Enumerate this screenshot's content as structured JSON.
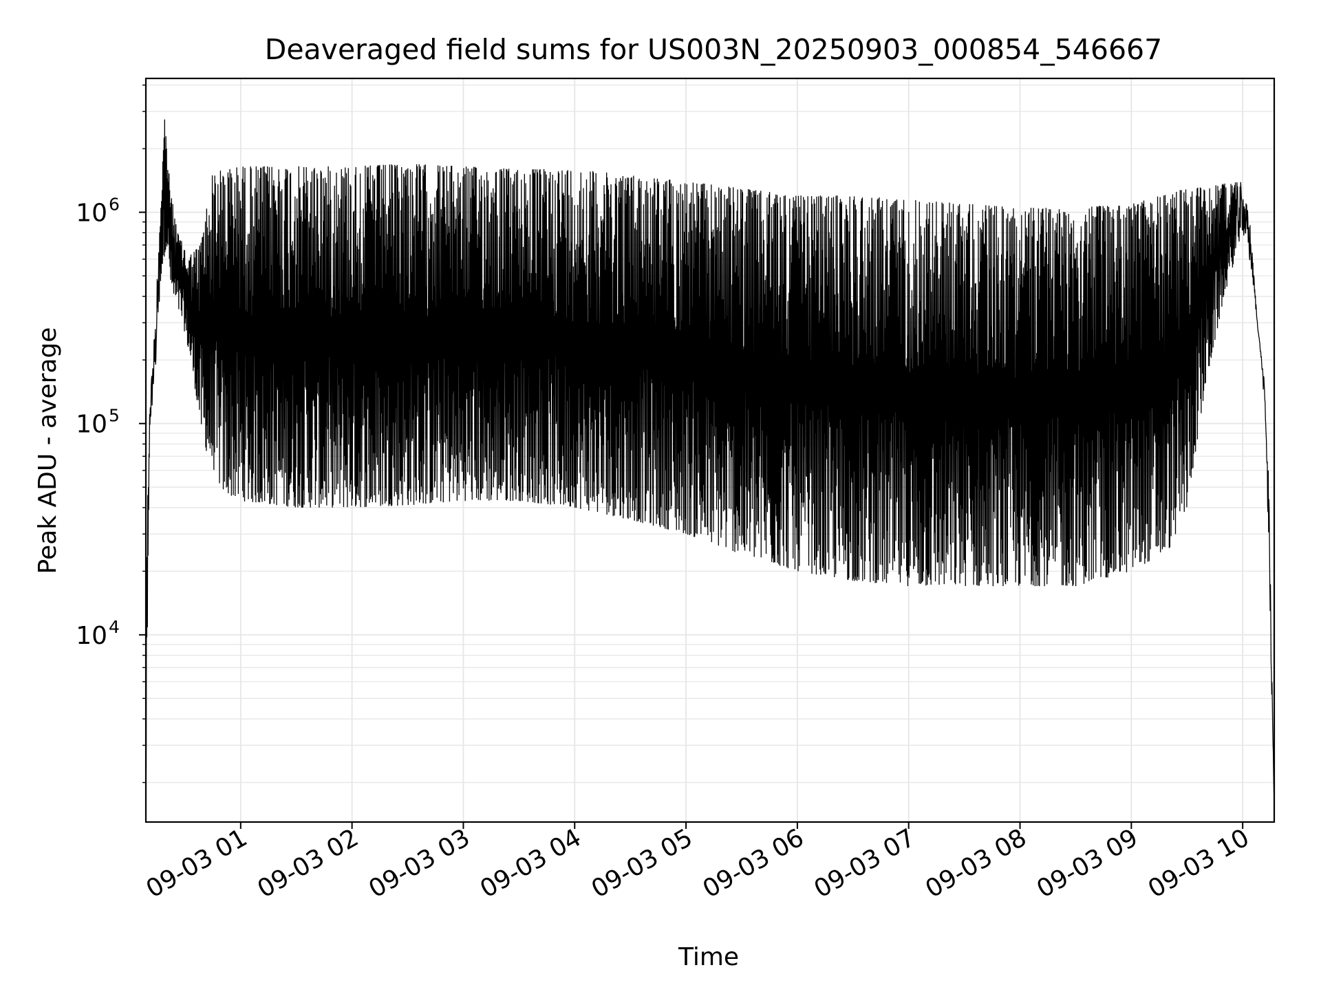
{
  "chart_data": {
    "type": "line",
    "title": "Deaveraged field sums for US003N_20250903_000854_546667",
    "xlabel": "Time",
    "ylabel": "Peak ADU - average",
    "x_axis": {
      "kind": "time",
      "start": "2025-09-03 00:08:54",
      "end": "2025-09-03 10:17:00",
      "tick_labels": [
        "09-03 01",
        "09-03 02",
        "09-03 03",
        "09-03 04",
        "09-03 05",
        "09-03 06",
        "09-03 07",
        "09-03 08",
        "09-03 09",
        "09-03 10"
      ],
      "tick_values": [
        "2025-09-03 01:00",
        "2025-09-03 02:00",
        "2025-09-03 03:00",
        "2025-09-03 04:00",
        "2025-09-03 05:00",
        "2025-09-03 06:00",
        "2025-09-03 07:00",
        "2025-09-03 08:00",
        "2025-09-03 09:00",
        "2025-09-03 10:00"
      ]
    },
    "y_axis": {
      "scale": "log",
      "range": [
        1300,
        4300000
      ],
      "ticks": [
        {
          "value": 10000,
          "base": "10",
          "exp": "4"
        },
        {
          "value": 100000,
          "base": "10",
          "exp": "5"
        },
        {
          "value": 1000000,
          "base": "10",
          "exp": "6"
        }
      ]
    },
    "grid": true,
    "legend": "none",
    "line_color": "#000000",
    "grid_color": "#e6e6e6",
    "series": [
      {
        "name": "",
        "envelope_upper": [
          [
            "2025-09-03 00:08:54",
            18000
          ],
          [
            "2025-09-03 00:11:00",
            130000
          ],
          [
            "2025-09-03 00:14:00",
            320000
          ],
          [
            "2025-09-03 00:17:00",
            1200000
          ],
          [
            "2025-09-03 00:19:00",
            2900000
          ],
          [
            "2025-09-03 00:22:00",
            1300000
          ],
          [
            "2025-09-03 00:26:00",
            800000
          ],
          [
            "2025-09-03 00:32:00",
            620000
          ],
          [
            "2025-09-03 00:38:00",
            700000
          ],
          [
            "2025-09-03 00:45:00",
            1550000
          ],
          [
            "2025-09-03 01:00:00",
            1650000
          ],
          [
            "2025-09-03 01:30:00",
            1650000
          ],
          [
            "2025-09-03 02:00:00",
            1650000
          ],
          [
            "2025-09-03 02:30:00",
            1700000
          ],
          [
            "2025-09-03 03:00:00",
            1650000
          ],
          [
            "2025-09-03 03:30:00",
            1600000
          ],
          [
            "2025-09-03 04:00:00",
            1600000
          ],
          [
            "2025-09-03 04:30:00",
            1500000
          ],
          [
            "2025-09-03 05:00:00",
            1400000
          ],
          [
            "2025-09-03 05:30:00",
            1300000
          ],
          [
            "2025-09-03 06:00:00",
            1200000
          ],
          [
            "2025-09-03 06:30:00",
            1200000
          ],
          [
            "2025-09-03 07:00:00",
            1150000
          ],
          [
            "2025-09-03 07:30:00",
            1100000
          ],
          [
            "2025-09-03 08:00:00",
            1050000
          ],
          [
            "2025-09-03 08:30:00",
            1050000
          ],
          [
            "2025-09-03 09:00:00",
            1100000
          ],
          [
            "2025-09-03 09:30:00",
            1300000
          ],
          [
            "2025-09-03 10:00:00",
            1400000
          ],
          [
            "2025-09-03 10:04:00",
            900000
          ],
          [
            "2025-09-03 10:08:00",
            300000
          ],
          [
            "2025-09-03 10:12:00",
            150000
          ],
          [
            "2025-09-03 10:17:00",
            1500
          ]
        ],
        "envelope_lower": [
          [
            "2025-09-03 00:08:54",
            1500
          ],
          [
            "2025-09-03 00:11:00",
            90000
          ],
          [
            "2025-09-03 00:14:00",
            160000
          ],
          [
            "2025-09-03 00:17:00",
            500000
          ],
          [
            "2025-09-03 00:20:00",
            700000
          ],
          [
            "2025-09-03 00:23:00",
            400000
          ],
          [
            "2025-09-03 00:28:00",
            320000
          ],
          [
            "2025-09-03 00:33:00",
            200000
          ],
          [
            "2025-09-03 00:40:00",
            80000
          ],
          [
            "2025-09-03 00:50:00",
            48000
          ],
          [
            "2025-09-03 01:00:00",
            43000
          ],
          [
            "2025-09-03 01:30:00",
            40000
          ],
          [
            "2025-09-03 02:00:00",
            40000
          ],
          [
            "2025-09-03 02:30:00",
            41000
          ],
          [
            "2025-09-03 03:00:00",
            43000
          ],
          [
            "2025-09-03 03:30:00",
            43000
          ],
          [
            "2025-09-03 04:00:00",
            40000
          ],
          [
            "2025-09-03 04:30:00",
            35000
          ],
          [
            "2025-09-03 05:00:00",
            30000
          ],
          [
            "2025-09-03 05:30:00",
            24000
          ],
          [
            "2025-09-03 06:00:00",
            20000
          ],
          [
            "2025-09-03 06:30:00",
            18000
          ],
          [
            "2025-09-03 07:00:00",
            17000
          ],
          [
            "2025-09-03 07:30:00",
            17000
          ],
          [
            "2025-09-03 08:00:00",
            17000
          ],
          [
            "2025-09-03 08:30:00",
            17000
          ],
          [
            "2025-09-03 09:00:00",
            20000
          ],
          [
            "2025-09-03 09:20:00",
            25000
          ],
          [
            "2025-09-03 09:30:00",
            40000
          ],
          [
            "2025-09-03 09:40:00",
            150000
          ],
          [
            "2025-09-03 09:50:00",
            400000
          ],
          [
            "2025-09-03 10:00:00",
            800000
          ],
          [
            "2025-09-03 10:05:00",
            500000
          ],
          [
            "2025-09-03 10:10:00",
            200000
          ],
          [
            "2025-09-03 10:14:00",
            60000
          ],
          [
            "2025-09-03 10:17:00",
            1500
          ]
        ]
      }
    ]
  }
}
